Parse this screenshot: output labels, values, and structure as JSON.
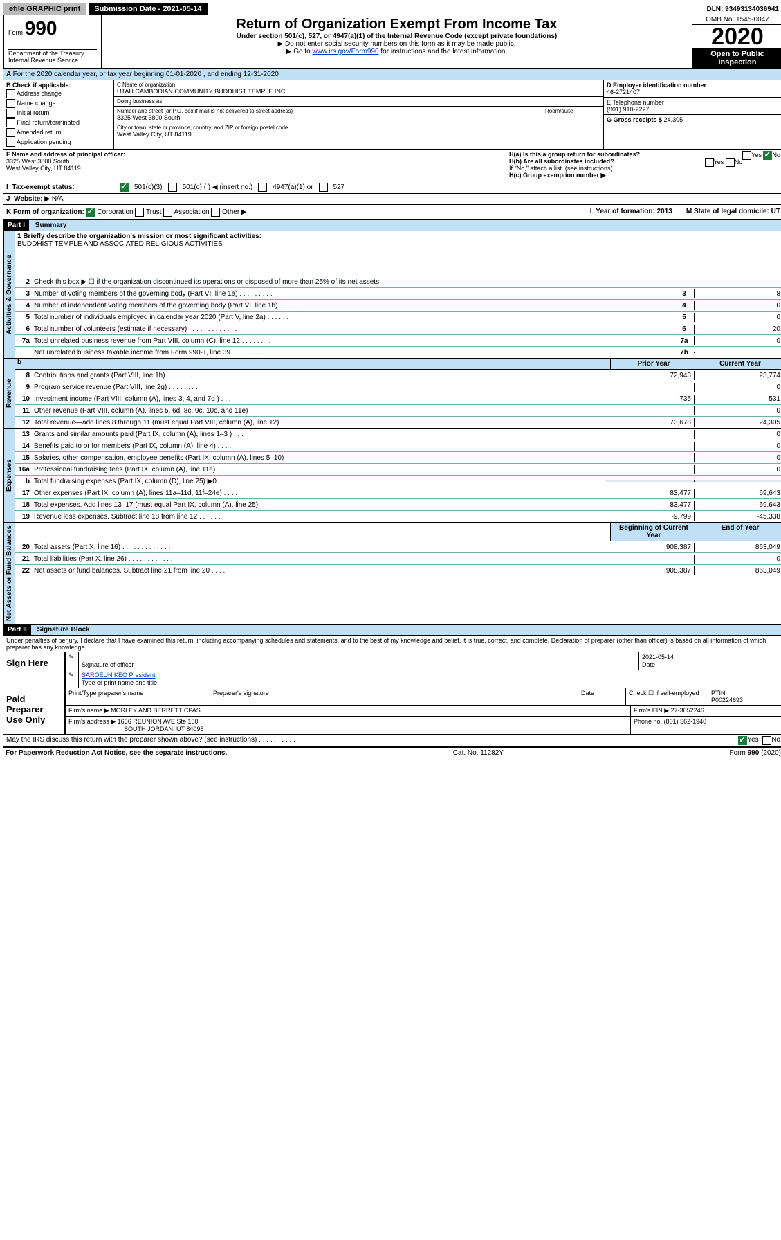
{
  "topbar": {
    "efile": "efile GRAPHIC print",
    "submission": "Submission Date - 2021-05-14",
    "dln": "DLN: 93493134036941"
  },
  "header": {
    "form_label": "Form",
    "form_num": "990",
    "title": "Return of Organization Exempt From Income Tax",
    "subtitle": "Under section 501(c), 527, or 4947(a)(1) of the Internal Revenue Code (except private foundations)",
    "note1": "▶ Do not enter social security numbers on this form as it may be made public.",
    "note2_pre": "▶ Go to ",
    "note2_link": "www.irs.gov/Form990",
    "note2_post": " for instructions and the latest information.",
    "omb": "OMB No. 1545-0047",
    "year": "2020",
    "open": "Open to Public Inspection",
    "dept": "Department of the Treasury Internal Revenue Service"
  },
  "lineA": "For the 2020 calendar year, or tax year beginning 01-01-2020    , and ending 12-31-2020",
  "checkB": {
    "label": "B Check if applicable:",
    "items": [
      "Address change",
      "Name change",
      "Initial return",
      "Final return/terminated",
      "Amended return",
      "Application pending"
    ]
  },
  "entity": {
    "name_label": "C Name of organization",
    "name": "UTAH CAMBODIAN COMMUNITY BUDDHIST TEMPLE INC",
    "dba_label": "Doing business as",
    "dba": "",
    "street_label": "Number and street (or P.O. box if mail is not delivered to street address)",
    "room_label": "Room/suite",
    "street": "3325 West 3800 South",
    "city_label": "City or town, state or province, country, and ZIP or foreign postal code",
    "city": "West Valley City, UT  84119",
    "ein_label": "D Employer identification number",
    "ein": "46-2721407",
    "phone_label": "E Telephone number",
    "phone": "(801) 910-2227",
    "gross_label": "G Gross receipts $",
    "gross": "24,305"
  },
  "officer": {
    "label": "F  Name and address of principal officer:",
    "name": "",
    "addr1": "3325 West 3800 South",
    "addr2": "West Valley City, UT  84119"
  },
  "h": {
    "ha": "H(a)  Is this a group return for subordinates?",
    "hb": "H(b)  Are all subordinates included?",
    "hb_note": "If \"No,\" attach a list. (see instructions)",
    "hc": "H(c)  Group exemption number ▶",
    "yes": "Yes",
    "no": "No"
  },
  "status": {
    "label": "Tax-exempt status:",
    "c3": "501(c)(3)",
    "c": "501(c) (  ) ◀ (insert no.)",
    "a1": "4947(a)(1) or",
    "s527": "527"
  },
  "website": {
    "label": "Website: ▶",
    "value": "N/A"
  },
  "k": {
    "label": "K Form of organization:",
    "corp": "Corporation",
    "trust": "Trust",
    "assoc": "Association",
    "other": "Other ▶",
    "l": "L Year of formation: 2013",
    "m": "M State of legal domicile: UT"
  },
  "part1": {
    "tag": "Part I",
    "title": "Summary"
  },
  "summary": {
    "mission_label": "1  Briefly describe the organization's mission or most significant activities:",
    "mission": "BUDDHIST TEMPLE AND ASSOCIATED RELIGIOUS ACTIVITIES",
    "l2": "Check this box ▶ ☐  if the organization discontinued its operations or disposed of more than 25% of its net assets.",
    "lines_gov": [
      {
        "n": "3",
        "d": "Number of voting members of the governing body (Part VI, line 1a)  .    .    .    .    .    .    .    .    .",
        "box": "3",
        "v": "8"
      },
      {
        "n": "4",
        "d": "Number of independent voting members of the governing body (Part VI, line 1b)  .    .    .    .    .",
        "box": "4",
        "v": "0"
      },
      {
        "n": "5",
        "d": "Total number of individuals employed in calendar year 2020 (Part V, line 2a)  .    .    .    .    .    .",
        "box": "5",
        "v": "0"
      },
      {
        "n": "6",
        "d": "Total number of volunteers (estimate if necessary)  .    .    .    .    .    .    .    .    .    .    .    .    .",
        "box": "6",
        "v": "20"
      },
      {
        "n": "7a",
        "d": "Total unrelated business revenue from Part VIII, column (C), line 12  .    .    .    .    .    .    .    .",
        "box": "7a",
        "v": "0"
      },
      {
        "n": "",
        "d": "Net unrelated business taxable income from Form 990-T, line 39  .    .    .    .    .    .    .    .    .",
        "box": "7b",
        "v": ""
      }
    ],
    "col_head": {
      "b": "b",
      "prior": "Prior Year",
      "current": "Current Year"
    },
    "revenue": [
      {
        "n": "8",
        "d": "Contributions and grants (Part VIII, line 1h)  .    .    .    .    .    .    .    .",
        "p": "72,943",
        "c": "23,774"
      },
      {
        "n": "9",
        "d": "Program service revenue (Part VIII, line 2g)  .    .    .    .    .    .    .    .",
        "p": "",
        "c": "0"
      },
      {
        "n": "10",
        "d": "Investment income (Part VIII, column (A), lines 3, 4, and 7d )  .    .    .",
        "p": "735",
        "c": "531"
      },
      {
        "n": "11",
        "d": "Other revenue (Part VIII, column (A), lines 5, 6d, 8c, 9c, 10c, and 11e)",
        "p": "",
        "c": "0"
      },
      {
        "n": "12",
        "d": "Total revenue—add lines 8 through 11 (must equal Part VIII, column (A), line 12)",
        "p": "73,678",
        "c": "24,305"
      }
    ],
    "expenses": [
      {
        "n": "13",
        "d": "Grants and similar amounts paid (Part IX, column (A), lines 1–3 )  .    .    .",
        "p": "",
        "c": "0"
      },
      {
        "n": "14",
        "d": "Benefits paid to or for members (Part IX, column (A), line 4)  .    .    .    .",
        "p": "",
        "c": "0"
      },
      {
        "n": "15",
        "d": "Salaries, other compensation, employee benefits (Part IX, column (A), lines 5–10)",
        "p": "",
        "c": "0"
      },
      {
        "n": "16a",
        "d": "Professional fundraising fees (Part IX, column (A), line 11e)  .    .    .    .",
        "p": "",
        "c": "0"
      },
      {
        "n": "b",
        "d": "Total fundraising expenses (Part IX, column (D), line 25) ▶0",
        "p": "shade",
        "c": "shade"
      },
      {
        "n": "17",
        "d": "Other expenses (Part IX, column (A), lines 11a–11d, 11f–24e)  .    .    .    .",
        "p": "83,477",
        "c": "69,643"
      },
      {
        "n": "18",
        "d": "Total expenses. Add lines 13–17 (must equal Part IX, column (A), line 25)",
        "p": "83,477",
        "c": "69,643"
      },
      {
        "n": "19",
        "d": "Revenue less expenses. Subtract line 18 from line 12  .    .    .    .    .    .",
        "p": "-9,799",
        "c": "-45,338"
      }
    ],
    "net_head": {
      "begin": "Beginning of Current Year",
      "end": "End of Year"
    },
    "net": [
      {
        "n": "20",
        "d": "Total assets (Part X, line 16)  .    .    .    .    .    .    .    .    .    .    .    .    .",
        "p": "908,387",
        "c": "863,049"
      },
      {
        "n": "21",
        "d": "Total liabilities (Part X, line 26)  .    .    .    .    .    .    .    .    .    .    .    .",
        "p": "",
        "c": "0"
      },
      {
        "n": "22",
        "d": "Net assets or fund balances. Subtract line 21 from line 20  .    .    .    .",
        "p": "908,387",
        "c": "863,049"
      }
    ],
    "vert": {
      "gov": "Activities & Governance",
      "rev": "Revenue",
      "exp": "Expenses",
      "net": "Net Assets or Fund Balances"
    }
  },
  "part2": {
    "tag": "Part II",
    "title": "Signature Block"
  },
  "sig": {
    "perjury": "Under penalties of perjury, I declare that I have examined this return, including accompanying schedules and statements, and to the best of my knowledge and belief, it is true, correct, and complete. Declaration of preparer (other than officer) is based on all information of which preparer has any knowledge.",
    "sign_here": "Sign Here",
    "sig_officer": "Signature of officer",
    "date": "Date",
    "sig_date": "2021-05-14",
    "officer_name": "SAROEUN KEO President",
    "type_name": "Type or print name and title",
    "paid": "Paid Preparer Use Only",
    "prep_name_lbl": "Print/Type preparer's name",
    "prep_sig_lbl": "Preparer's signature",
    "date_lbl": "Date",
    "check_self": "Check ☐ if self-employed",
    "ptin_lbl": "PTIN",
    "ptin": "P00224693",
    "firm_name_lbl": "Firm's name    ▶",
    "firm_name": "MORLEY AND BERRETT CPAS",
    "firm_ein_lbl": "Firm's EIN ▶",
    "firm_ein": "27-3052246",
    "firm_addr_lbl": "Firm's address ▶",
    "firm_addr": "1656 REUNION AVE Ste 100",
    "firm_city": "SOUTH JORDAN, UT  84095",
    "phone_lbl": "Phone no.",
    "phone": "(801) 562-1940",
    "discuss": "May the IRS discuss this return with the preparer shown above? (see instructions)  .    .    .    .    .    .    .    .    .    .",
    "yes": "Yes",
    "no": "No"
  },
  "footer": {
    "pra": "For Paperwork Reduction Act Notice, see the separate instructions.",
    "cat": "Cat. No. 11282Y",
    "form": "Form 990 (2020)"
  }
}
